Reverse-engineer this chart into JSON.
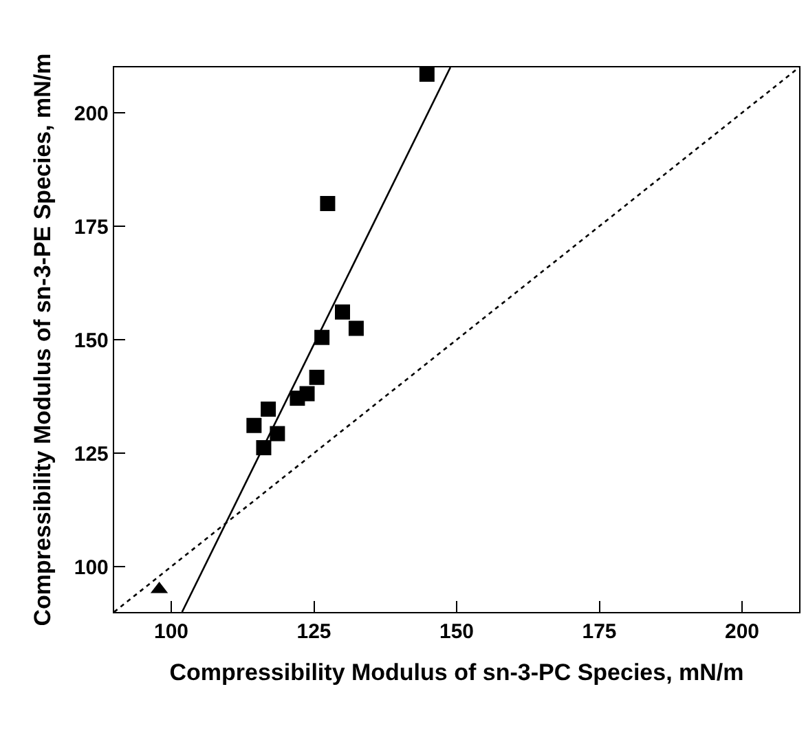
{
  "chart_data": {
    "type": "scatter",
    "xlabel": "Compressibility Modulus of sn-3-PC Species, mN/m",
    "ylabel": "Compressibility Modulus of sn-3-PE Species, mN/m",
    "xlim": [
      90,
      210
    ],
    "ylim": [
      90,
      210
    ],
    "xticks": [
      100,
      125,
      150,
      175,
      200
    ],
    "yticks": [
      100,
      125,
      150,
      175,
      200
    ],
    "legend": false,
    "series": [
      {
        "marker": "square",
        "color": "#000000",
        "x": [
          144.8,
          127.4,
          130.0,
          132.4,
          126.4,
          125.5,
          123.8,
          122.1,
          117.0,
          114.5,
          118.6,
          116.2
        ],
        "values": [
          208.5,
          180,
          156.1,
          152.5,
          150.5,
          141.7,
          138.1,
          137.1,
          134.7,
          131.1,
          129.3,
          126.2
        ]
      },
      {
        "marker": "triangle",
        "color": "#000000",
        "x": [
          97.9
        ],
        "values": [
          95
        ]
      },
      {
        "type": "line",
        "marker": "none",
        "line_style": "solid",
        "color": "#000000",
        "x": [
          101.9,
          148.9
        ],
        "values": [
          90,
          210
        ]
      },
      {
        "type": "line",
        "marker": "none",
        "line_style": "dotted",
        "color": "#000000",
        "x": [
          90,
          210
        ],
        "values": [
          90,
          210
        ]
      }
    ]
  }
}
